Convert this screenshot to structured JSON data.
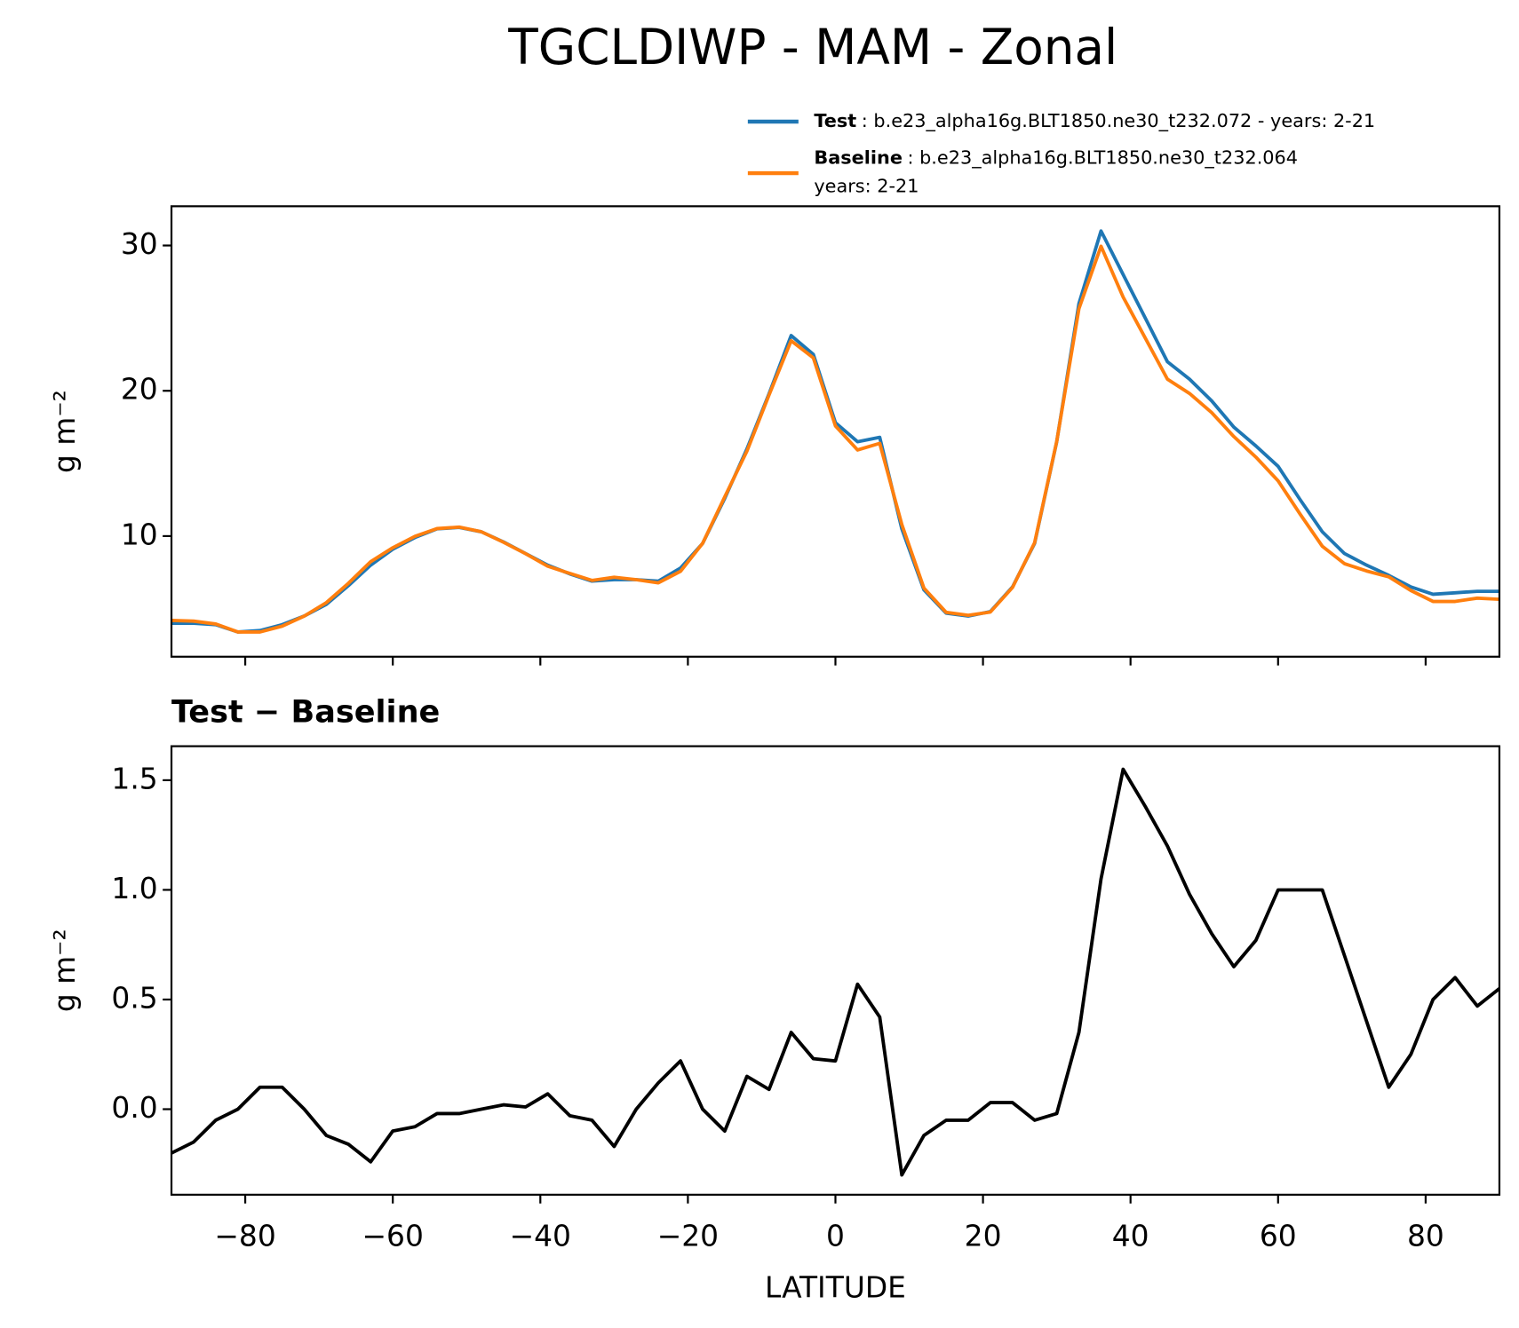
{
  "title": "TGCLDIWP - MAM - Zonal",
  "chart_data": [
    {
      "type": "line",
      "ylabel": "g m⁻²",
      "xtick_labels": false,
      "x": [
        -90,
        -87,
        -84,
        -81,
        -78,
        -75,
        -72,
        -69,
        -66,
        -63,
        -60,
        -57,
        -54,
        -51,
        -48,
        -45,
        -42,
        -39,
        -36,
        -33,
        -30,
        -27,
        -24,
        -21,
        -18,
        -15,
        -12,
        -9,
        -6,
        -3,
        0,
        3,
        6,
        9,
        12,
        15,
        18,
        21,
        24,
        27,
        30,
        33,
        36,
        39,
        42,
        45,
        48,
        51,
        54,
        57,
        60,
        63,
        66,
        69,
        72,
        75,
        78,
        81,
        84,
        87,
        90
      ],
      "series": [
        {
          "name": "Test",
          "label_suffix": ": b.e23_alpha16g.BLT1850.ne30_t232.072 - years: 2-21",
          "color": "#1f77b4",
          "values": [
            4.0,
            4.0,
            3.9,
            3.4,
            3.5,
            3.9,
            4.5,
            5.3,
            6.6,
            8.0,
            9.1,
            9.9,
            10.5,
            10.6,
            10.3,
            9.6,
            8.8,
            8.0,
            7.4,
            6.9,
            7.0,
            7.0,
            6.9,
            7.8,
            9.5,
            12.6,
            16.0,
            19.8,
            23.8,
            22.5,
            17.8,
            16.5,
            16.8,
            10.5,
            6.3,
            4.7,
            4.5,
            4.8,
            6.5,
            9.5,
            16.5,
            26.0,
            31.0,
            28.0,
            25.0,
            22.0,
            20.8,
            19.3,
            17.5,
            16.2,
            14.8,
            12.5,
            10.3,
            8.8,
            8.0,
            7.3,
            6.5,
            6.0,
            6.1,
            6.2,
            6.2
          ]
        },
        {
          "name": "Baseline",
          "label_suffix": ": b.e23_alpha16g.BLT1850.ne30_t232.064",
          "label_line2": "years: 2-21",
          "color": "#ff7f0e",
          "values": [
            4.2,
            4.15,
            3.95,
            3.4,
            3.4,
            3.8,
            4.5,
            5.42,
            6.76,
            8.24,
            9.2,
            9.98,
            10.52,
            10.62,
            10.3,
            9.58,
            8.79,
            7.93,
            7.43,
            6.95,
            7.17,
            7.0,
            6.78,
            7.58,
            9.5,
            12.7,
            15.85,
            19.71,
            23.45,
            22.27,
            17.58,
            15.93,
            16.38,
            10.8,
            6.42,
            4.75,
            4.55,
            4.77,
            6.47,
            9.55,
            16.52,
            25.65,
            29.95,
            26.45,
            23.62,
            20.8,
            19.82,
            18.5,
            16.85,
            15.43,
            13.8,
            11.5,
            9.3,
            8.1,
            7.6,
            7.2,
            6.25,
            5.5,
            5.5,
            5.73,
            5.65
          ]
        }
      ],
      "xlim": [
        -90,
        90
      ],
      "xticks": [
        -80,
        -60,
        -40,
        -20,
        0,
        20,
        40,
        60,
        80
      ],
      "ylim": [
        1.7,
        32.7
      ],
      "yticks": [
        10,
        20,
        30
      ]
    },
    {
      "type": "line",
      "title": "Test − Baseline",
      "ylabel": "g m⁻²",
      "xlabel": "LATITUDE",
      "xtick_labels": true,
      "x": [
        -90,
        -87,
        -84,
        -81,
        -78,
        -75,
        -72,
        -69,
        -66,
        -63,
        -60,
        -57,
        -54,
        -51,
        -48,
        -45,
        -42,
        -39,
        -36,
        -33,
        -30,
        -27,
        -24,
        -21,
        -18,
        -15,
        -12,
        -9,
        -6,
        -3,
        0,
        3,
        6,
        9,
        12,
        15,
        18,
        21,
        24,
        27,
        30,
        33,
        36,
        39,
        42,
        45,
        48,
        51,
        54,
        57,
        60,
        63,
        66,
        69,
        72,
        75,
        78,
        81,
        84,
        87,
        90
      ],
      "series": [
        {
          "color": "#000000",
          "values": [
            -0.2,
            -0.15,
            -0.05,
            0.0,
            0.1,
            0.1,
            0.0,
            -0.12,
            -0.16,
            -0.24,
            -0.1,
            -0.08,
            -0.02,
            -0.02,
            0.0,
            0.02,
            0.01,
            0.07,
            -0.03,
            -0.05,
            -0.17,
            0.0,
            0.12,
            0.22,
            0.0,
            -0.1,
            0.15,
            0.09,
            0.35,
            0.23,
            0.22,
            0.57,
            0.42,
            -0.3,
            -0.12,
            -0.05,
            -0.05,
            0.03,
            0.03,
            -0.05,
            -0.02,
            0.35,
            1.05,
            1.55,
            1.38,
            1.2,
            0.98,
            0.8,
            0.65,
            0.77,
            1.0,
            1.0,
            1.0,
            0.7,
            0.4,
            0.1,
            0.25,
            0.5,
            0.6,
            0.47,
            0.55
          ]
        }
      ],
      "xlim": [
        -90,
        90
      ],
      "xticks": [
        {
          "value": -80,
          "label": "−80"
        },
        {
          "value": -60,
          "label": "−60"
        },
        {
          "value": -40,
          "label": "−40"
        },
        {
          "value": -20,
          "label": "−20"
        },
        0,
        20,
        40,
        60,
        80
      ],
      "ylim": [
        -0.39,
        1.655
      ],
      "yticks": [
        {
          "value": 0,
          "label": "0.0"
        },
        0.5,
        {
          "value": 1,
          "label": "1.0"
        },
        1.5
      ]
    }
  ]
}
